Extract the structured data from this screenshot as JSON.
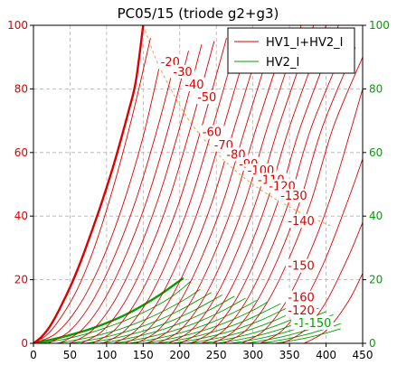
{
  "chart_data": {
    "type": "line",
    "title": "PC05/15 (triode g2+g3)",
    "xlabel": "",
    "ylabel_left": "",
    "ylabel_right": "",
    "xlim": [
      0,
      450
    ],
    "ylim": [
      0,
      100
    ],
    "xticks": [
      0,
      50,
      100,
      150,
      200,
      250,
      300,
      350,
      400,
      450
    ],
    "yticks": [
      0,
      20,
      40,
      60,
      80,
      100
    ],
    "grid": true,
    "legend_position": "top-right",
    "colors": {
      "red": "#dd0000",
      "green": "#00a000",
      "orange": "#f0a030"
    },
    "legend": [
      {
        "label": "HV1_I+HV2_I",
        "color": "#dd0000"
      },
      {
        "label": "HV2_I",
        "color": "#00a000"
      }
    ],
    "curve_labels": [
      {
        "text": "-20",
        "x": 187,
        "y": 88
      },
      {
        "text": "-30",
        "x": 204,
        "y": 85
      },
      {
        "text": "-40",
        "x": 220,
        "y": 81
      },
      {
        "text": "-50",
        "x": 237,
        "y": 77
      },
      {
        "text": "-60",
        "x": 244,
        "y": 66
      },
      {
        "text": "-70",
        "x": 260,
        "y": 62
      },
      {
        "text": "-80",
        "x": 277,
        "y": 59
      },
      {
        "text": "-90",
        "x": 294,
        "y": 56
      },
      {
        "text": "-100",
        "x": 311,
        "y": 54
      },
      {
        "text": "-110",
        "x": 325,
        "y": 51
      },
      {
        "text": "-120",
        "x": 340,
        "y": 49
      },
      {
        "text": "-130",
        "x": 356,
        "y": 46
      },
      {
        "text": "-140",
        "x": 366,
        "y": 38
      },
      {
        "text": "-150",
        "x": 366,
        "y": 24
      },
      {
        "text": "-160",
        "x": 366,
        "y": 14
      },
      {
        "text": "-120",
        "x": 366,
        "y": 10
      },
      {
        "text": "-1",
        "x": 364,
        "y": 6
      },
      {
        "text": "-150",
        "x": 389,
        "y": 6
      }
    ],
    "series": [
      {
        "group": "HV1_I+HV2_I",
        "bias": 0,
        "bold": true,
        "x": [
          0,
          10,
          20,
          30,
          40,
          50,
          60,
          70,
          80,
          90,
          100,
          110,
          120,
          130,
          140,
          150
        ],
        "y": [
          0,
          1.8,
          4.5,
          8.3,
          12.8,
          17.6,
          23,
          29,
          35.4,
          42,
          49,
          56.4,
          64.5,
          73,
          82.4,
          100
        ]
      },
      {
        "group": "HV1_I+HV2_I",
        "bias": -10,
        "x": [
          0,
          20,
          40,
          60,
          80,
          100,
          120,
          140,
          160
        ],
        "y": [
          0,
          3,
          9,
          17,
          28,
          42,
          58,
          76,
          96
        ]
      },
      {
        "group": "HV1_I+HV2_I",
        "bias": -20,
        "x": [
          0,
          30,
          60,
          90,
          120,
          150,
          175
        ],
        "y": [
          0,
          3,
          11,
          24,
          42,
          65,
          90
        ]
      },
      {
        "group": "HV1_I+HV2_I",
        "bias": -30,
        "x": [
          20,
          50,
          80,
          110,
          140,
          170,
          195
        ],
        "y": [
          0,
          4,
          13,
          27,
          45,
          68,
          90
        ]
      },
      {
        "group": "HV1_I+HV2_I",
        "bias": -40,
        "x": [
          35,
          65,
          95,
          125,
          155,
          185,
          212
        ],
        "y": [
          0,
          4,
          13,
          27,
          45,
          68,
          92
        ]
      },
      {
        "group": "HV1_I+HV2_I",
        "bias": -50,
        "x": [
          50,
          80,
          110,
          140,
          170,
          200,
          230
        ],
        "y": [
          0,
          4,
          13,
          27,
          45,
          68,
          94
        ]
      },
      {
        "group": "HV1_I+HV2_I",
        "bias": -60,
        "x": [
          65,
          95,
          125,
          155,
          185,
          215,
          247
        ],
        "y": [
          0,
          4,
          13,
          27,
          45,
          68,
          95
        ]
      },
      {
        "group": "HV1_I+HV2_I",
        "bias": -70,
        "x": [
          80,
          110,
          140,
          170,
          200,
          230,
          264
        ],
        "y": [
          0,
          4,
          13,
          27,
          45,
          68,
          96
        ]
      },
      {
        "group": "HV1_I+HV2_I",
        "bias": -80,
        "x": [
          95,
          125,
          155,
          185,
          215,
          245,
          281
        ],
        "y": [
          0,
          4,
          13,
          27,
          45,
          68,
          97
        ]
      },
      {
        "group": "HV1_I+HV2_I",
        "bias": -90,
        "x": [
          110,
          140,
          170,
          200,
          230,
          260,
          298
        ],
        "y": [
          0,
          4,
          13,
          27,
          45,
          68,
          98
        ]
      },
      {
        "group": "HV1_I+HV2_I",
        "bias": -100,
        "x": [
          125,
          155,
          185,
          215,
          245,
          275,
          315
        ],
        "y": [
          0,
          4,
          13,
          27,
          45,
          68,
          98
        ]
      },
      {
        "group": "HV1_I+HV2_I",
        "bias": -110,
        "x": [
          140,
          170,
          200,
          230,
          260,
          290,
          332
        ],
        "y": [
          0,
          4,
          13,
          27,
          45,
          68,
          99
        ]
      },
      {
        "group": "HV1_I+HV2_I",
        "bias": -120,
        "x": [
          155,
          185,
          215,
          245,
          275,
          305,
          349
        ],
        "y": [
          0,
          4,
          13,
          27,
          45,
          68,
          99
        ]
      },
      {
        "group": "HV1_I+HV2_I",
        "bias": -130,
        "x": [
          170,
          200,
          230,
          260,
          290,
          320,
          366
        ],
        "y": [
          0,
          4,
          13,
          27,
          45,
          68,
          100
        ]
      },
      {
        "group": "HV1_I+HV2_I",
        "bias": -140,
        "x": [
          185,
          215,
          245,
          275,
          305,
          335,
          383
        ],
        "y": [
          0,
          4,
          13,
          27,
          45,
          68,
          100
        ]
      },
      {
        "group": "HV1_I+HV2_I",
        "bias": -150,
        "x": [
          200,
          230,
          260,
          290,
          320,
          350,
          400
        ],
        "y": [
          0,
          4,
          13,
          27,
          45,
          68,
          100
        ]
      },
      {
        "group": "HV1_I+HV2_I",
        "bias": -160,
        "x": [
          215,
          245,
          275,
          305,
          335,
          365,
          417
        ],
        "y": [
          0,
          4,
          13,
          27,
          45,
          68,
          100
        ]
      },
      {
        "group": "HV1_I+HV2_I",
        "bias": -170,
        "x": [
          230,
          260,
          290,
          320,
          350,
          380,
          430
        ],
        "y": [
          0,
          4,
          13,
          27,
          45,
          68,
          96
        ]
      },
      {
        "group": "HV1_I+HV2_I",
        "bias": -180,
        "x": [
          245,
          275,
          305,
          335,
          365,
          395,
          440
        ],
        "y": [
          0,
          4,
          13,
          27,
          45,
          68,
          93
        ]
      },
      {
        "group": "HV1_I+HV2_I",
        "bias": -190,
        "x": [
          260,
          290,
          320,
          350,
          380,
          410,
          450
        ],
        "y": [
          0,
          4,
          13,
          27,
          45,
          68,
          90
        ]
      },
      {
        "group": "HV1_I+HV2_I",
        "bias": -200,
        "x": [
          285,
          315,
          345,
          375,
          405,
          435,
          450
        ],
        "y": [
          0,
          4,
          13,
          27,
          45,
          68,
          80
        ]
      },
      {
        "group": "HV1_I+HV2_I",
        "bias": -210,
        "x": [
          310,
          340,
          370,
          400,
          430,
          450
        ],
        "y": [
          0,
          4,
          13,
          27,
          45,
          58
        ]
      },
      {
        "group": "HV1_I+HV2_I",
        "bias": -220,
        "x": [
          340,
          370,
          400,
          430,
          450
        ],
        "y": [
          0,
          4,
          13,
          27,
          38
        ]
      },
      {
        "group": "HV1_I+HV2_I",
        "bias": -230,
        "x": [
          370,
          400,
          430,
          450
        ],
        "y": [
          0,
          4,
          13,
          22
        ]
      },
      {
        "group": "HV2_I",
        "bias": 0,
        "bold": true,
        "x": [
          0,
          25,
          50,
          75,
          100,
          125,
          150,
          175,
          205
        ],
        "y": [
          0,
          1.2,
          2.6,
          4.3,
          6.4,
          8.9,
          12,
          15.6,
          20.5
        ]
      },
      {
        "group": "HV2_I",
        "bias": -10,
        "x": [
          10,
          40,
          70,
          100,
          130,
          160,
          190,
          215
        ],
        "y": [
          0,
          1.2,
          2.8,
          5,
          7.6,
          10.8,
          14.8,
          19.5
        ]
      },
      {
        "group": "HV2_I",
        "bias": -20,
        "x": [
          30,
          60,
          90,
          120,
          150,
          180,
          210,
          228
        ],
        "y": [
          0,
          1.1,
          2.6,
          4.6,
          7.2,
          10.4,
          14.2,
          17
        ]
      },
      {
        "group": "HV2_I",
        "bias": -30,
        "x": [
          50,
          80,
          110,
          140,
          170,
          200,
          230,
          243
        ],
        "y": [
          0,
          1.1,
          2.6,
          4.6,
          7.2,
          10.4,
          14.2,
          16
        ]
      },
      {
        "group": "HV2_I",
        "bias": -40,
        "x": [
          70,
          100,
          130,
          160,
          190,
          220,
          250,
          258
        ],
        "y": [
          0,
          1.1,
          2.6,
          4.6,
          7.2,
          10.4,
          14.2,
          15.2
        ]
      },
      {
        "group": "HV2_I",
        "bias": -50,
        "x": [
          90,
          120,
          150,
          180,
          210,
          240,
          270,
          275
        ],
        "y": [
          0,
          1.1,
          2.6,
          4.6,
          7.2,
          10.4,
          14.2,
          14.8
        ]
      },
      {
        "group": "HV2_I",
        "bias": -60,
        "x": [
          110,
          140,
          170,
          200,
          230,
          260,
          290
        ],
        "y": [
          0,
          1.1,
          2.6,
          4.6,
          7.2,
          10.4,
          14.2
        ]
      },
      {
        "group": "HV2_I",
        "bias": -70,
        "x": [
          130,
          160,
          190,
          220,
          250,
          280,
          305
        ],
        "y": [
          0,
          1.1,
          2.6,
          4.6,
          7.2,
          10.4,
          13.5
        ]
      },
      {
        "group": "HV2_I",
        "bias": -80,
        "x": [
          150,
          180,
          210,
          240,
          270,
          300,
          320
        ],
        "y": [
          0,
          1.1,
          2.6,
          4.6,
          7.2,
          10.4,
          13
        ]
      },
      {
        "group": "HV2_I",
        "bias": -90,
        "x": [
          170,
          200,
          230,
          260,
          290,
          320,
          338
        ],
        "y": [
          0,
          1.1,
          2.6,
          4.6,
          7.2,
          10.4,
          12.5
        ]
      },
      {
        "group": "HV2_I",
        "bias": -100,
        "x": [
          190,
          220,
          250,
          280,
          310,
          340,
          355
        ],
        "y": [
          0,
          1.1,
          2.6,
          4.6,
          7.2,
          10.4,
          12
        ]
      },
      {
        "group": "HV2_I",
        "bias": -110,
        "x": [
          210,
          240,
          270,
          300,
          330,
          360,
          372
        ],
        "y": [
          0,
          1.1,
          2.6,
          4.6,
          7.2,
          10.4,
          11.4
        ]
      },
      {
        "group": "HV2_I",
        "bias": -120,
        "x": [
          230,
          260,
          290,
          320,
          350,
          380,
          390
        ],
        "y": [
          0,
          1.1,
          2.6,
          4.6,
          7.2,
          10.4,
          11
        ]
      },
      {
        "group": "HV2_I",
        "bias": -130,
        "x": [
          250,
          280,
          310,
          340,
          370,
          400
        ],
        "y": [
          0,
          1.1,
          2.6,
          4.6,
          7.2,
          10
        ]
      },
      {
        "group": "HV2_I",
        "bias": -140,
        "x": [
          270,
          300,
          330,
          360,
          390,
          410
        ],
        "y": [
          0,
          1.1,
          2.6,
          4.6,
          7.2,
          9
        ]
      },
      {
        "group": "HV2_I",
        "bias": -150,
        "x": [
          290,
          320,
          350,
          380,
          410
        ],
        "y": [
          0,
          1.1,
          2.6,
          4.6,
          7.2
        ]
      },
      {
        "group": "HV2_I",
        "bias": -160,
        "x": [
          310,
          340,
          370,
          400,
          420
        ],
        "y": [
          0,
          1.1,
          2.6,
          4.6,
          6.2
        ]
      },
      {
        "group": "HV2_I",
        "bias": -170,
        "x": [
          330,
          360,
          390,
          420
        ],
        "y": [
          0,
          1.1,
          2.6,
          4.6
        ]
      }
    ],
    "max_dissipation_curve": {
      "label": "",
      "x": [
        150,
        170,
        190,
        210,
        230,
        250,
        270,
        290,
        310,
        330,
        350,
        370,
        390,
        410
      ],
      "y": [
        100,
        88,
        79,
        71,
        65,
        60,
        55.5,
        51.7,
        48.4,
        45.5,
        42.9,
        40.5,
        38.5,
        36.6
      ]
    }
  }
}
